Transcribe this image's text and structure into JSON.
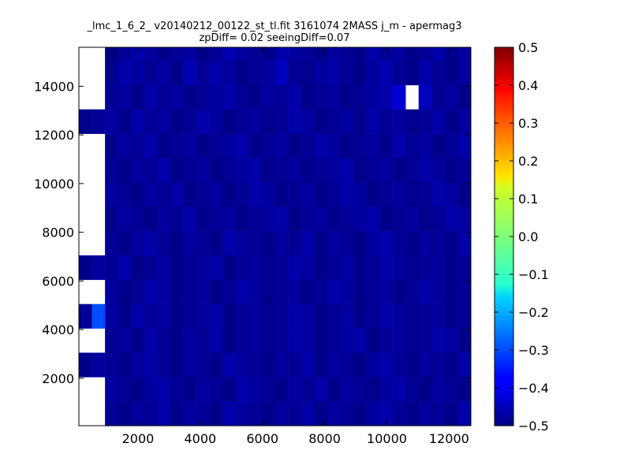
{
  "chart_data": {
    "type": "heatmap",
    "title_line1": "_lmc_1_6_2_ v20140212_00122_st_tl.fit 3161074 2MASS j_m - apermag3",
    "title_line2": "zpDiff= 0.02 seeingDiff=0.07",
    "xlim": [
      100,
      12700
    ],
    "ylim": [
      50,
      15600
    ],
    "x_ticks": [
      2000,
      4000,
      6000,
      8000,
      10000,
      12000
    ],
    "y_ticks": [
      2000,
      4000,
      6000,
      8000,
      10000,
      12000,
      14000
    ],
    "x_tick_labels": [
      "2000",
      "4000",
      "6000",
      "8000",
      "10000",
      "12000"
    ],
    "y_tick_labels": [
      "2000",
      "4000",
      "6000",
      "8000",
      "10000",
      "12000",
      "14000"
    ],
    "colorbar": {
      "min": -0.5,
      "max": 0.5,
      "colormap": "jet",
      "ticks": [
        -0.5,
        -0.4,
        -0.3,
        -0.2,
        -0.1,
        0.0,
        0.1,
        0.2,
        0.3,
        0.4,
        0.5
      ],
      "tick_labels": [
        "−0.5",
        "−0.4",
        "−0.3",
        "−0.2",
        "−0.1",
        "0.0",
        "0.1",
        "0.2",
        "0.3",
        "0.4",
        "0.5"
      ]
    },
    "grid": {
      "x_min": 100,
      "bin_width": 420,
      "y_min": 50,
      "bin_height": 1000,
      "rows_note": "rows listed from top (highest y) to bottom",
      "rows": [
        [
          null,
          null,
          -0.5,
          -0.48,
          -0.46,
          -0.47,
          -0.49,
          -0.48,
          -0.47,
          -0.49,
          -0.48,
          -0.45,
          -0.47,
          -0.48,
          -0.49,
          -0.46,
          -0.47,
          -0.48,
          -0.49,
          -0.47,
          -0.48,
          -0.49,
          -0.46,
          -0.48,
          -0.47,
          -0.49,
          -0.48,
          -0.46,
          -0.49,
          -0.47
        ],
        [
          null,
          null,
          -0.49,
          -0.46,
          -0.47,
          -0.48,
          -0.47,
          -0.49,
          -0.45,
          -0.48,
          -0.46,
          -0.47,
          -0.49,
          -0.48,
          -0.47,
          -0.44,
          -0.48,
          -0.49,
          -0.47,
          -0.46,
          -0.48,
          -0.49,
          -0.47,
          -0.45,
          -0.48,
          -0.49,
          -0.46,
          -0.48,
          -0.49,
          -0.47
        ],
        [
          null,
          null,
          -0.48,
          -0.47,
          -0.49,
          -0.46,
          -0.48,
          -0.47,
          -0.49,
          -0.48,
          -0.47,
          -0.46,
          -0.48,
          -0.49,
          -0.47,
          -0.48,
          -0.46,
          -0.49,
          -0.48,
          -0.47,
          -0.49,
          -0.48,
          -0.47,
          -0.46,
          -0.42,
          null,
          -0.44,
          -0.48,
          -0.47,
          -0.49
        ],
        [
          -0.49,
          -0.48,
          -0.47,
          -0.49,
          -0.46,
          -0.48,
          -0.47,
          -0.49,
          -0.48,
          -0.46,
          -0.47,
          -0.49,
          -0.48,
          -0.47,
          -0.49,
          -0.48,
          -0.46,
          -0.47,
          -0.49,
          -0.48,
          -0.47,
          -0.49,
          -0.46,
          -0.48,
          -0.47,
          -0.49,
          -0.48,
          -0.46,
          -0.49,
          -0.47
        ],
        [
          null,
          null,
          -0.49,
          -0.47,
          -0.48,
          -0.46,
          -0.49,
          -0.48,
          -0.47,
          -0.49,
          -0.48,
          -0.47,
          -0.46,
          -0.49,
          -0.48,
          -0.47,
          -0.49,
          -0.48,
          -0.46,
          -0.47,
          -0.49,
          -0.48,
          -0.47,
          -0.49,
          -0.46,
          -0.48,
          -0.47,
          -0.49,
          -0.48,
          -0.46
        ],
        [
          null,
          null,
          -0.48,
          -0.49,
          -0.47,
          -0.48,
          -0.46,
          -0.49,
          -0.48,
          -0.47,
          -0.49,
          -0.48,
          -0.47,
          -0.46,
          -0.49,
          -0.48,
          -0.47,
          -0.49,
          -0.48,
          -0.47,
          -0.46,
          -0.49,
          -0.48,
          -0.47,
          -0.49,
          -0.48,
          -0.46,
          -0.47,
          -0.49,
          -0.48
        ],
        [
          null,
          null,
          -0.47,
          -0.48,
          -0.49,
          -0.47,
          -0.48,
          -0.46,
          -0.49,
          -0.48,
          -0.47,
          -0.49,
          -0.48,
          -0.46,
          -0.47,
          -0.49,
          -0.48,
          -0.47,
          -0.49,
          -0.48,
          -0.46,
          -0.47,
          -0.49,
          -0.48,
          -0.47,
          -0.49,
          -0.48,
          -0.46,
          -0.47,
          -0.49
        ],
        [
          null,
          null,
          -0.49,
          -0.47,
          -0.48,
          -0.49,
          -0.47,
          -0.48,
          -0.46,
          -0.49,
          -0.48,
          -0.47,
          -0.49,
          -0.48,
          -0.47,
          -0.46,
          -0.49,
          -0.48,
          -0.47,
          -0.49,
          -0.48,
          -0.47,
          -0.46,
          -0.49,
          -0.48,
          -0.47,
          -0.49,
          -0.48,
          -0.46,
          -0.47
        ],
        [
          null,
          null,
          -0.48,
          -0.49,
          -0.47,
          -0.46,
          -0.48,
          -0.49,
          -0.47,
          -0.48,
          -0.49,
          -0.46,
          -0.47,
          -0.48,
          -0.49,
          -0.47,
          -0.48,
          -0.46,
          -0.49,
          -0.47,
          -0.48,
          -0.49,
          -0.47,
          -0.46,
          -0.48,
          -0.49,
          -0.47,
          -0.48,
          -0.49,
          -0.46
        ],
        [
          -0.49,
          -0.47,
          -0.48,
          -0.46,
          -0.49,
          -0.48,
          -0.47,
          -0.49,
          -0.48,
          -0.47,
          -0.46,
          -0.49,
          -0.48,
          -0.47,
          -0.49,
          -0.48,
          -0.46,
          -0.47,
          -0.49,
          -0.48,
          -0.47,
          -0.49,
          -0.48,
          -0.46,
          -0.47,
          -0.49,
          -0.48,
          -0.47,
          -0.49,
          -0.48
        ],
        [
          null,
          null,
          -0.47,
          -0.49,
          -0.48,
          -0.46,
          -0.47,
          -0.49,
          -0.48,
          -0.47,
          -0.49,
          -0.48,
          -0.46,
          -0.47,
          -0.49,
          -0.48,
          -0.47,
          -0.49,
          -0.48,
          -0.46,
          -0.47,
          -0.49,
          -0.48,
          -0.47,
          -0.49,
          -0.48,
          -0.46,
          -0.47,
          -0.49,
          -0.48
        ],
        [
          -0.48,
          -0.3,
          -0.47,
          -0.49,
          -0.46,
          -0.48,
          -0.47,
          -0.49,
          -0.48,
          -0.47,
          -0.46,
          -0.49,
          -0.48,
          -0.47,
          -0.49,
          -0.48,
          -0.46,
          -0.47,
          -0.49,
          -0.48,
          -0.47,
          -0.49,
          -0.48,
          -0.46,
          -0.47,
          -0.49,
          -0.48,
          -0.47,
          -0.49,
          -0.48
        ],
        [
          null,
          null,
          -0.48,
          -0.47,
          -0.49,
          -0.46,
          -0.48,
          -0.49,
          -0.47,
          -0.48,
          -0.46,
          -0.49,
          -0.48,
          -0.47,
          -0.49,
          -0.48,
          -0.46,
          -0.47,
          -0.49,
          -0.48,
          -0.47,
          -0.46,
          -0.49,
          -0.48,
          -0.47,
          -0.49,
          -0.48,
          -0.46,
          -0.47,
          -0.49
        ],
        [
          -0.49,
          -0.47,
          -0.48,
          -0.49,
          -0.47,
          -0.46,
          -0.48,
          -0.49,
          -0.47,
          -0.48,
          -0.49,
          -0.46,
          -0.47,
          -0.48,
          -0.49,
          -0.47,
          -0.48,
          -0.46,
          -0.49,
          -0.47,
          -0.48,
          -0.49,
          -0.47,
          -0.46,
          -0.48,
          -0.49,
          -0.47,
          -0.48,
          -0.49,
          -0.46
        ],
        [
          null,
          null,
          -0.47,
          -0.48,
          -0.49,
          -0.47,
          -0.46,
          -0.48,
          -0.49,
          -0.47,
          -0.48,
          -0.49,
          -0.46,
          -0.47,
          -0.48,
          -0.49,
          -0.47,
          -0.48,
          -0.46,
          -0.49,
          -0.47,
          -0.48,
          -0.49,
          -0.47,
          -0.46,
          -0.48,
          -0.49,
          -0.47,
          -0.48,
          -0.49
        ],
        [
          null,
          null,
          -0.48,
          -0.49,
          -0.47,
          -0.48,
          -0.46,
          -0.49,
          -0.47,
          -0.48,
          -0.49,
          -0.46,
          -0.47,
          -0.48,
          -0.49,
          -0.47,
          -0.48,
          -0.46,
          -0.49,
          -0.47,
          -0.48,
          -0.49,
          -0.47,
          -0.46,
          -0.48,
          -0.49,
          -0.47,
          -0.48,
          -0.49,
          -0.46
        ]
      ]
    }
  }
}
